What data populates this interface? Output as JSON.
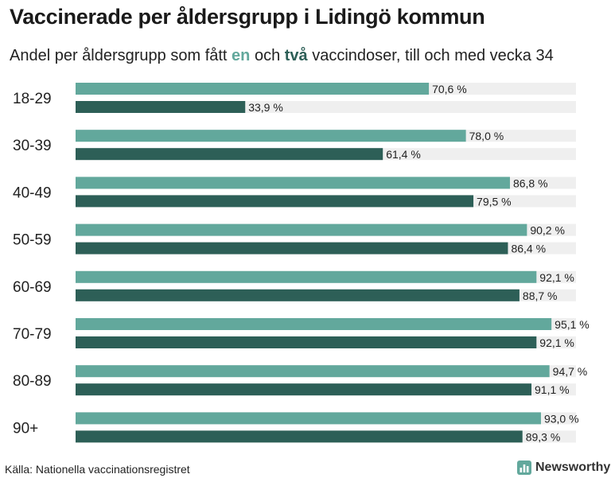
{
  "title": "Vaccinerade per åldersgrupp i Lidingö kommun",
  "subtitle": {
    "part1": "Andel per åldersgrupp som fått ",
    "kw1": "en",
    "part2": " och ",
    "kw2": "två",
    "part3": " vaccindoser, till och med vecka 34"
  },
  "colors": {
    "one_dose": "#62a89c",
    "two_doses": "#2d5f57",
    "track": "#efefef",
    "text": "#222222"
  },
  "chart_data": {
    "type": "bar",
    "orientation": "horizontal",
    "categories": [
      "18-29",
      "30-39",
      "40-49",
      "50-59",
      "60-69",
      "70-79",
      "80-89",
      "90+"
    ],
    "series": [
      {
        "name": "en",
        "values": [
          70.6,
          78.0,
          86.8,
          90.2,
          92.1,
          95.1,
          94.7,
          93.0
        ]
      },
      {
        "name": "två",
        "values": [
          33.9,
          61.4,
          79.5,
          86.4,
          88.7,
          92.1,
          91.1,
          89.3
        ]
      }
    ],
    "xlim": [
      0,
      100
    ],
    "unit": "%",
    "decimal_separator": ","
  },
  "footer": {
    "source": "Källa: Nationella vaccinationsregistret",
    "logo_text": "Newsworthy"
  }
}
